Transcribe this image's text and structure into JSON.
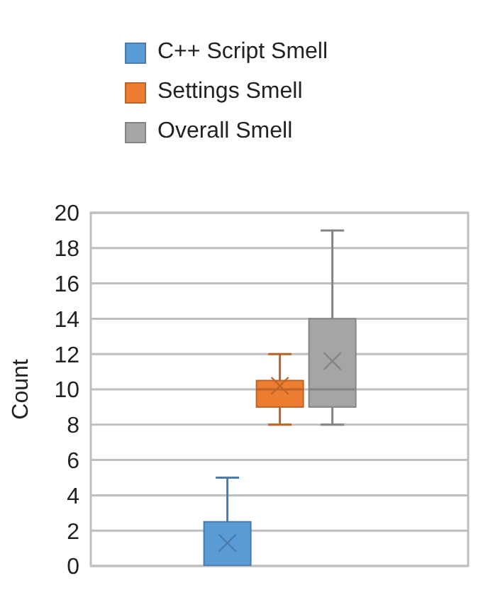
{
  "chart_data": {
    "type": "box",
    "ylabel": "Count",
    "categories": [
      null
    ],
    "ylim": [
      0,
      20
    ],
    "yticks": [
      0,
      2,
      4,
      6,
      8,
      10,
      12,
      14,
      16,
      18,
      20
    ],
    "grid": "y",
    "legend": "top",
    "tick_labels": "y",
    "series": [
      {
        "name": "C++ Script Smell",
        "color": "#5b9bd5",
        "boxes": [
          {
            "low": 0,
            "q1": 0,
            "median": 0,
            "q3": 2.5,
            "high": 5,
            "mean": 1.3
          }
        ]
      },
      {
        "name": "Settings Smell",
        "color": "#ed7d31",
        "boxes": [
          {
            "low": 8,
            "q1": 9,
            "median": 10,
            "q3": 10.5,
            "high": 12,
            "mean": 10.2
          }
        ]
      },
      {
        "name": "Overall Smell",
        "color": "#a5a5a5",
        "boxes": [
          {
            "low": 8,
            "q1": 9,
            "median": 10,
            "q3": 14,
            "high": 19,
            "mean": 11.6
          }
        ]
      }
    ]
  }
}
